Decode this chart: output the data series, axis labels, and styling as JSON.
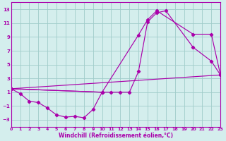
{
  "xlabel": "Windchill (Refroidissement éolien,°C)",
  "xlim": [
    0,
    23
  ],
  "ylim": [
    -4,
    14
  ],
  "yticks": [
    -3,
    -1,
    1,
    3,
    5,
    7,
    9,
    11,
    13
  ],
  "xticks": [
    0,
    1,
    2,
    3,
    4,
    5,
    6,
    7,
    8,
    9,
    10,
    11,
    12,
    13,
    14,
    15,
    16,
    17,
    18,
    19,
    20,
    21,
    22,
    23
  ],
  "bg_color": "#d4eeed",
  "grid_color": "#a0ccca",
  "line_color": "#aa00aa",
  "line1_x": [
    0,
    1,
    2,
    3,
    4,
    5,
    6,
    7,
    8,
    9,
    10
  ],
  "line1_y": [
    1.5,
    0.8,
    -0.3,
    -0.5,
    -1.3,
    -2.3,
    -2.6,
    -2.5,
    -2.7,
    -1.5,
    1.0
  ],
  "line2_x": [
    0,
    10,
    11,
    12,
    13,
    14,
    15,
    16,
    17,
    20,
    22,
    23
  ],
  "line2_y": [
    1.5,
    1.0,
    1.0,
    1.0,
    1.0,
    4.0,
    11.2,
    12.5,
    12.8,
    7.5,
    5.5,
    3.5
  ],
  "line3_x": [
    0,
    10,
    14,
    15,
    16,
    20,
    22,
    23
  ],
  "line3_y": [
    1.5,
    1.0,
    9.3,
    11.5,
    12.8,
    9.4,
    9.4,
    3.5
  ],
  "line4_x": [
    0,
    23
  ],
  "line4_y": [
    1.5,
    3.5
  ]
}
